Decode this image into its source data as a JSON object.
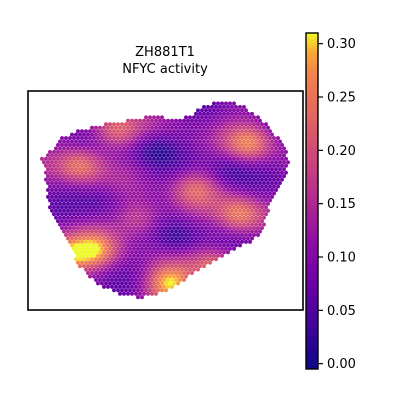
{
  "chart_data": {
    "type": "heatmap",
    "title": "ZH881T1",
    "subtitle": "NFYC activity",
    "xlabel": "",
    "ylabel": "",
    "grid": false,
    "legend": "colorbar-right",
    "colormap": "plasma",
    "colorbar": {
      "range": [
        -0.005,
        0.31
      ],
      "ticks": [
        0.0,
        0.05,
        0.1,
        0.15,
        0.2,
        0.25,
        0.3
      ],
      "tick_labels": [
        "0.00",
        "0.05",
        "0.10",
        "0.15",
        "0.20",
        "0.25",
        "0.30"
      ]
    },
    "hotspots": [
      {
        "x": 0.16,
        "y": 0.33,
        "value": 0.25
      },
      {
        "x": 0.1,
        "y": 0.78,
        "value": 0.27
      },
      {
        "x": 0.22,
        "y": 0.76,
        "value": 0.26
      },
      {
        "x": 0.52,
        "y": 0.93,
        "value": 0.3
      },
      {
        "x": 0.8,
        "y": 0.58,
        "value": 0.26
      },
      {
        "x": 0.84,
        "y": 0.22,
        "value": 0.24
      },
      {
        "x": 0.62,
        "y": 0.45,
        "value": 0.2
      },
      {
        "x": 0.4,
        "y": 0.6,
        "value": 0.2
      },
      {
        "x": 0.3,
        "y": 0.15,
        "value": 0.22
      },
      {
        "x": 0.7,
        "y": 0.85,
        "value": 0.24
      },
      {
        "x": 0.45,
        "y": 0.25,
        "value": 0.03
      },
      {
        "x": 0.55,
        "y": 0.7,
        "value": 0.02
      },
      {
        "x": 0.25,
        "y": 0.5,
        "value": 0.05
      },
      {
        "x": 0.75,
        "y": 0.35,
        "value": 0.04
      }
    ]
  }
}
